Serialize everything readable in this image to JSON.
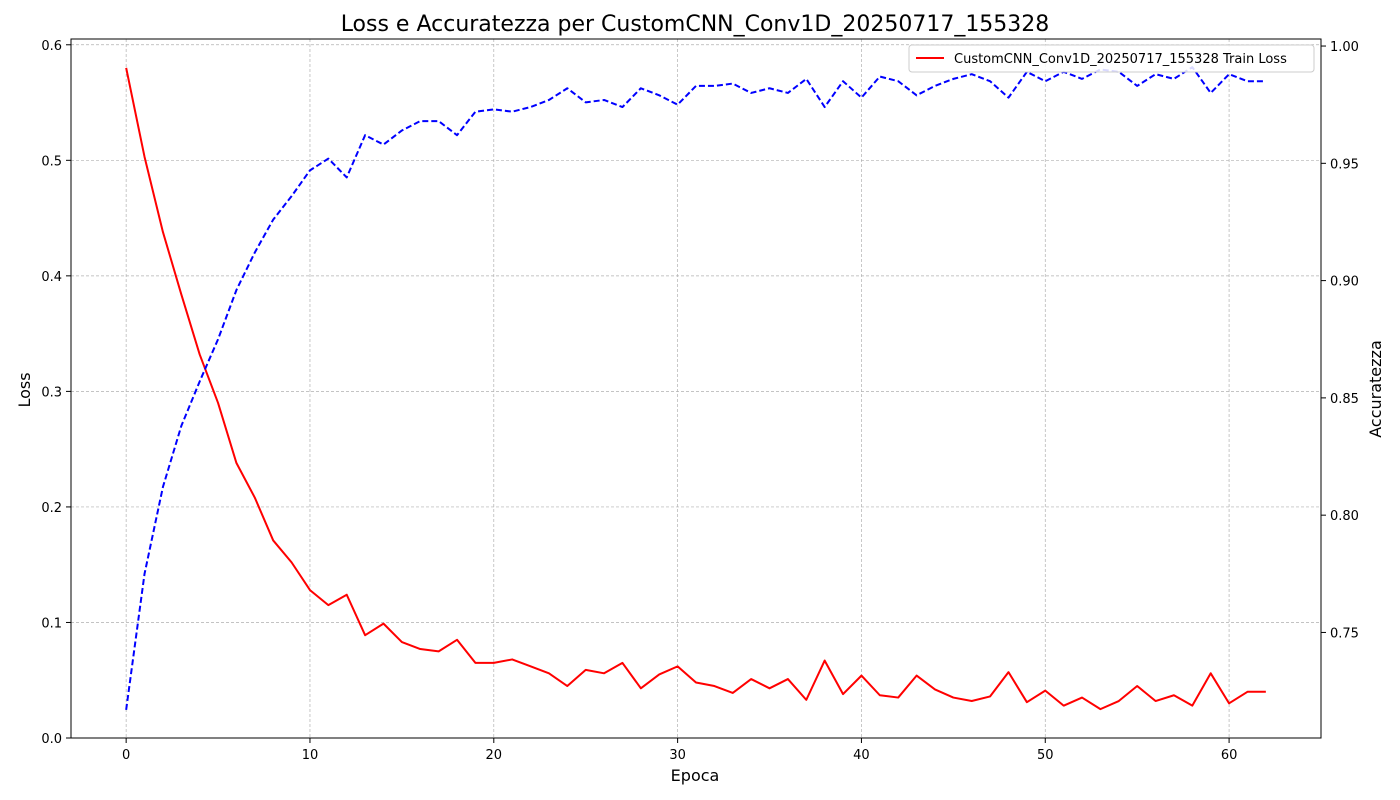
{
  "chart_data": {
    "type": "line",
    "title": "Loss e Accuratezza per CustomCNN_Conv1D_20250717_155328",
    "xlabel": "Epoca",
    "ylabel": "Loss",
    "ylabel_right": "Accuratezza",
    "xlim": [
      -3,
      65
    ],
    "ylim": [
      0,
      0.605
    ],
    "ylim_right": [
      0.705,
      1.003
    ],
    "x_ticks": [
      0,
      10,
      20,
      30,
      40,
      50,
      60
    ],
    "y_ticks": [
      0.0,
      0.1,
      0.2,
      0.3,
      0.4,
      0.5,
      0.6
    ],
    "y_tick_labels": [
      "0.0",
      "0.1",
      "0.2",
      "0.3",
      "0.4",
      "0.5",
      "0.6"
    ],
    "y_ticks_right": [
      0.75,
      0.8,
      0.85,
      0.9,
      0.95,
      1.0
    ],
    "y_tick_labels_right": [
      "0.75",
      "0.80",
      "0.85",
      "0.90",
      "0.95",
      "1.00"
    ],
    "grid": true,
    "legend_position": "top-right",
    "x": [
      0,
      1,
      2,
      3,
      4,
      5,
      6,
      7,
      8,
      9,
      10,
      11,
      12,
      13,
      14,
      15,
      16,
      17,
      18,
      19,
      20,
      21,
      22,
      23,
      24,
      25,
      26,
      27,
      28,
      29,
      30,
      31,
      32,
      33,
      34,
      35,
      36,
      37,
      38,
      39,
      40,
      41,
      42,
      43,
      44,
      45,
      46,
      47,
      48,
      49,
      50,
      51,
      52,
      53,
      54,
      55,
      56,
      57,
      58,
      59,
      60,
      61,
      62
    ],
    "series": [
      {
        "name": "CustomCNN_Conv1D_20250717_155328 Train Loss",
        "axis": "left",
        "color": "#ff0000",
        "style": "solid",
        "values": [
          0.58,
          0.503,
          0.438,
          0.384,
          0.332,
          0.29,
          0.238,
          0.208,
          0.171,
          0.152,
          0.128,
          0.115,
          0.124,
          0.089,
          0.099,
          0.083,
          0.077,
          0.075,
          0.085,
          0.065,
          0.065,
          0.068,
          0.062,
          0.056,
          0.045,
          0.059,
          0.056,
          0.065,
          0.043,
          0.055,
          0.062,
          0.048,
          0.045,
          0.039,
          0.051,
          0.043,
          0.051,
          0.033,
          0.067,
          0.038,
          0.054,
          0.037,
          0.035,
          0.054,
          0.042,
          0.035,
          0.032,
          0.036,
          0.057,
          0.031,
          0.041,
          0.028,
          0.035,
          0.025,
          0.032,
          0.045,
          0.032,
          0.037,
          0.028,
          0.056,
          0.03,
          0.04,
          0.04
        ]
      },
      {
        "name": "",
        "axis": "right",
        "color": "#0000ff",
        "style": "dashed",
        "values": [
          0.717,
          0.775,
          0.812,
          0.838,
          0.857,
          0.875,
          0.896,
          0.912,
          0.926,
          0.936,
          0.947,
          0.952,
          0.944,
          0.962,
          0.958,
          0.964,
          0.968,
          0.968,
          0.962,
          0.972,
          0.973,
          0.972,
          0.974,
          0.977,
          0.982,
          0.976,
          0.977,
          0.974,
          0.982,
          0.979,
          0.975,
          0.983,
          0.983,
          0.984,
          0.98,
          0.982,
          0.98,
          0.986,
          0.974,
          0.985,
          0.978,
          0.987,
          0.985,
          0.979,
          0.983,
          0.986,
          0.988,
          0.985,
          0.978,
          0.989,
          0.985,
          0.989,
          0.986,
          0.99,
          0.989,
          0.983,
          0.988,
          0.986,
          0.991,
          0.98,
          0.988,
          0.985,
          0.985
        ]
      }
    ]
  }
}
